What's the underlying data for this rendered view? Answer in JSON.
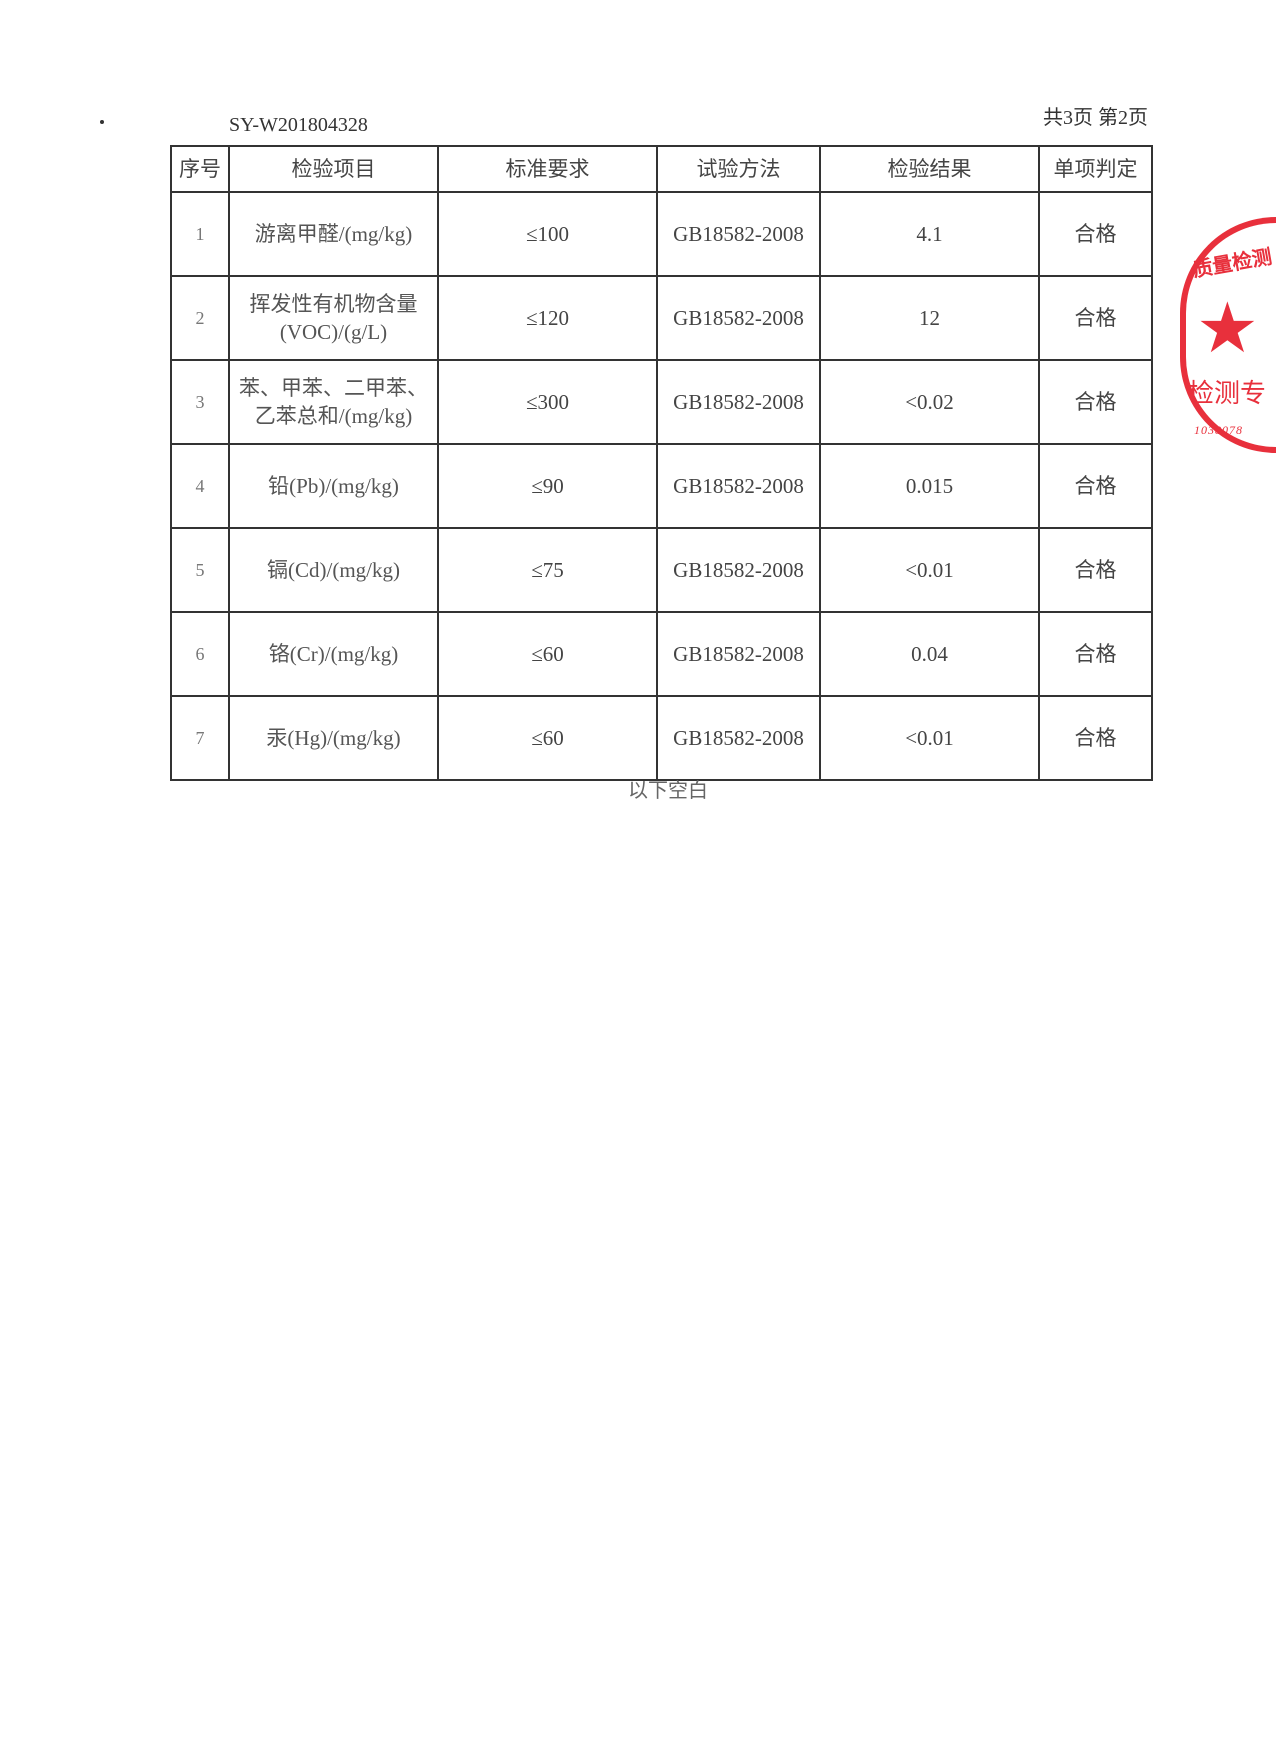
{
  "header": {
    "report_no": "SY-W201804328",
    "page_count": "共3页 第2页"
  },
  "table": {
    "columns": [
      "序号",
      "检验项目",
      "标准要求",
      "试验方法",
      "检验结果",
      "单项判定"
    ],
    "rows": [
      {
        "no": "1",
        "item": "游离甲醛/(mg/kg)",
        "requirement": "≤100",
        "method": "GB18582-2008",
        "result": "4.1",
        "verdict": "合格"
      },
      {
        "no": "2",
        "item": "挥发性有机物含量(VOC)/(g/L)",
        "requirement": "≤120",
        "method": "GB18582-2008",
        "result": "12",
        "verdict": "合格"
      },
      {
        "no": "3",
        "item": "苯、甲苯、二甲苯、乙苯总和/(mg/kg)",
        "requirement": "≤300",
        "method": "GB18582-2008",
        "result": "<0.02",
        "verdict": "合格"
      },
      {
        "no": "4",
        "item": "铅(Pb)/(mg/kg)",
        "requirement": "≤90",
        "method": "GB18582-2008",
        "result": "0.015",
        "verdict": "合格"
      },
      {
        "no": "5",
        "item": "镉(Cd)/(mg/kg)",
        "requirement": "≤75",
        "method": "GB18582-2008",
        "result": "<0.01",
        "verdict": "合格"
      },
      {
        "no": "6",
        "item": "铬(Cr)/(mg/kg)",
        "requirement": "≤60",
        "method": "GB18582-2008",
        "result": "0.04",
        "verdict": "合格"
      },
      {
        "no": "7",
        "item": "汞(Hg)/(mg/kg)",
        "requirement": "≤60",
        "method": "GB18582-2008",
        "result": "<0.01",
        "verdict": "合格"
      }
    ]
  },
  "footer": {
    "blank_note": "以下空白"
  },
  "stamp": {
    "top_text": "质量检测",
    "bottom_text": "检测专",
    "number": "1038078",
    "color": "#e8303c"
  }
}
